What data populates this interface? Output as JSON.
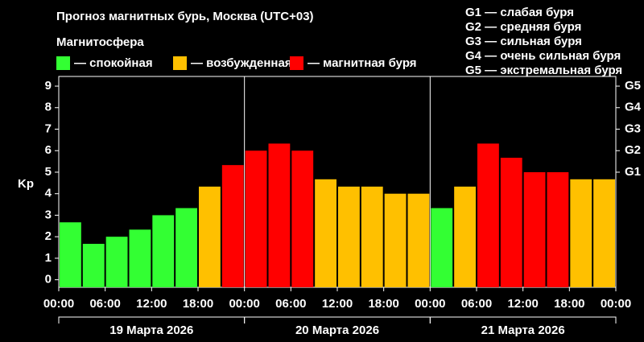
{
  "chart_data": {
    "type": "bar",
    "title": "Прогноз магнитных бурь, Москва (UTC+03)",
    "subtitle": "Магнитосфера",
    "ylabel": "Kp",
    "legend": [
      {
        "name": "— спокойная",
        "color": "#33ff33"
      },
      {
        "name": "— возбужденная",
        "color": "#ffc000"
      },
      {
        "name": "— магнитная буря",
        "color": "#ff0000"
      }
    ],
    "storm_scale": [
      "G1 — слабая буря",
      "G2 — средняя буря",
      "G3 — сильная буря",
      "G4 — очень сильная буря",
      "G5 — экстремальная буря"
    ],
    "x": [
      0,
      3,
      6,
      9,
      12,
      15,
      18,
      21,
      24,
      27,
      30,
      33,
      36,
      39,
      42,
      45,
      48,
      51,
      54,
      57,
      60,
      63,
      66,
      69
    ],
    "bar_width": 3,
    "values": [
      2.67,
      1.67,
      2.0,
      2.33,
      3.0,
      3.33,
      4.33,
      5.33,
      6.0,
      6.33,
      6.0,
      4.67,
      4.33,
      4.33,
      4.0,
      4.0,
      3.33,
      4.33,
      6.33,
      5.67,
      5.0,
      5.0,
      4.67,
      4.67
    ],
    "colors": [
      "#33ff33",
      "#33ff33",
      "#33ff33",
      "#33ff33",
      "#33ff33",
      "#33ff33",
      "#ffc000",
      "#ff0000",
      "#ff0000",
      "#ff0000",
      "#ff0000",
      "#ffc000",
      "#ffc000",
      "#ffc000",
      "#ffc000",
      "#ffc000",
      "#33ff33",
      "#ffc000",
      "#ff0000",
      "#ff0000",
      "#ff0000",
      "#ff0000",
      "#ffc000",
      "#ffc000"
    ],
    "xlim": [
      0,
      72
    ],
    "xticks": [
      {
        "value": 0,
        "label": "00:00"
      },
      {
        "value": 6,
        "label": "06:00"
      },
      {
        "value": 12,
        "label": "12:00"
      },
      {
        "value": 18,
        "label": "18:00"
      },
      {
        "value": 24,
        "label": "00:00"
      },
      {
        "value": 30,
        "label": "06:00"
      },
      {
        "value": 36,
        "label": "12:00"
      },
      {
        "value": 42,
        "label": "18:00"
      },
      {
        "value": 48,
        "label": "00:00"
      },
      {
        "value": 54,
        "label": "06:00"
      },
      {
        "value": 60,
        "label": "12:00"
      },
      {
        "value": 66,
        "label": "18:00"
      },
      {
        "value": 72,
        "label": "00:00"
      }
    ],
    "ylim": [
      -0.35,
      9.45
    ],
    "yticks": [
      0,
      1,
      2,
      3,
      4,
      5,
      6,
      7,
      8,
      9
    ],
    "y2lim": [
      -0.35,
      9.45
    ],
    "y2ticks": [
      {
        "value": 5,
        "label": "G1"
      },
      {
        "value": 6,
        "label": "G2"
      },
      {
        "value": 7,
        "label": "G3"
      },
      {
        "value": 8,
        "label": "G4"
      },
      {
        "value": 9,
        "label": "G5"
      }
    ],
    "days": [
      {
        "label": "19 Марта 2026",
        "start": 0,
        "end": 24
      },
      {
        "label": "20 Марта 2026",
        "start": 24,
        "end": 48
      },
      {
        "label": "21 Марта 2026",
        "start": 48,
        "end": 72
      }
    ]
  }
}
